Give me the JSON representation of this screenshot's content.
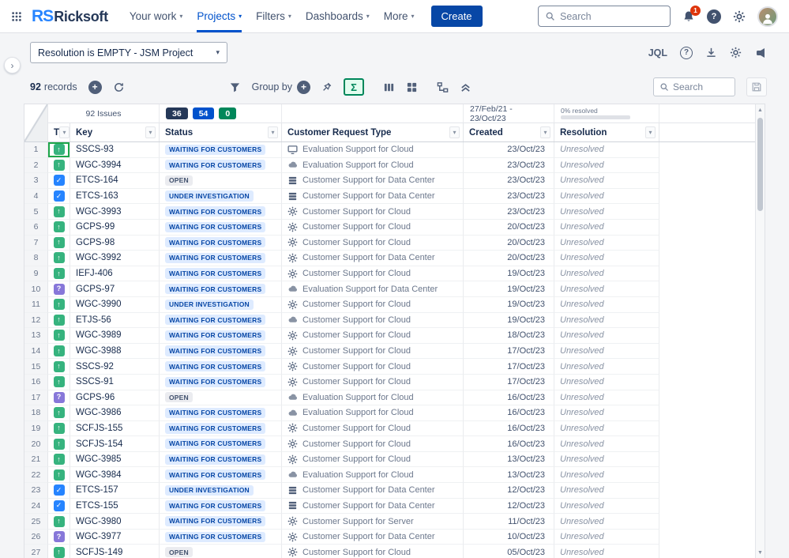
{
  "colors": {
    "brand_blue": "#0052cc",
    "create_button": "#0747a6",
    "sigma_green": "#00875a",
    "notification_red": "#de350b",
    "status_blue_bg": "#deebff",
    "status_blue_text": "#0747a6",
    "status_gray_bg": "#ebecf0",
    "status_gray_text": "#42526e",
    "type_improvement": "#36b37e",
    "type_task": "#2684ff",
    "type_question": "#8777d9",
    "selection_green": "#1da64a"
  },
  "topnav": {
    "logo_mark": "RS",
    "logo_text": "Ricksoft",
    "menu": [
      {
        "label": "Your work",
        "active": false
      },
      {
        "label": "Projects",
        "active": true
      },
      {
        "label": "Filters",
        "active": false
      },
      {
        "label": "Dashboards",
        "active": false
      },
      {
        "label": "More",
        "active": false
      }
    ],
    "create_label": "Create",
    "search_placeholder": "Search",
    "notification_count": "1",
    "icons": [
      "app-switcher-icon",
      "search-icon",
      "bell-icon",
      "help-icon",
      "gear-icon",
      "avatar"
    ]
  },
  "filter_bar": {
    "filter_value": "Resolution is EMPTY - JSM Project",
    "jql_label": "JQL",
    "icons": [
      "help-icon",
      "download-icon",
      "gear-icon",
      "megaphone-icon"
    ]
  },
  "toolbar": {
    "records_count": "92",
    "records_label": "records",
    "group_by_label": "Group by",
    "sum_label": "Σ",
    "search_placeholder": "Search",
    "icons": [
      "add-icon",
      "refresh-icon",
      "filter-icon",
      "add-icon",
      "pin-icon",
      "sigma-icon",
      "bars-icon",
      "grid-icon",
      "tree-icon",
      "collapse-rows-icon",
      "search-icon",
      "save-icon"
    ]
  },
  "table": {
    "issues_summary": "92 Issues",
    "badges": [
      {
        "value": "36",
        "color": "#253858"
      },
      {
        "value": "54",
        "color": "#0052cc"
      },
      {
        "value": "0",
        "color": "#00875a"
      }
    ],
    "date_range": "27/Feb/21 - 23/Oct/23",
    "progress_label": "0% resolved",
    "progress_percent": 0,
    "columns": [
      "T",
      "Key",
      "Status",
      "Customer Request Type",
      "Created",
      "Resolution"
    ],
    "status_styles": {
      "WAITING FOR CUSTOMERS": "blue",
      "UNDER INVESTIGATION": "blue",
      "OPEN": "gray"
    },
    "selected_cell": {
      "row": 1,
      "column": "T"
    },
    "rows": [
      {
        "num": 1,
        "type": "improvement",
        "key": "SSCS-93",
        "status": "WAITING FOR CUSTOMERS",
        "request_icon": "monitor",
        "request": "Evaluation Support for Cloud",
        "created": "23/Oct/23",
        "resolution": "Unresolved"
      },
      {
        "num": 2,
        "type": "improvement",
        "key": "WGC-3994",
        "status": "WAITING FOR CUSTOMERS",
        "request_icon": "cloud",
        "request": "Evaluation Support for Cloud",
        "created": "23/Oct/23",
        "resolution": "Unresolved"
      },
      {
        "num": 3,
        "type": "task",
        "key": "ETCS-164",
        "status": "OPEN",
        "request_icon": "server",
        "request": "Customer Support for Data Center",
        "created": "23/Oct/23",
        "resolution": "Unresolved"
      },
      {
        "num": 4,
        "type": "task",
        "key": "ETCS-163",
        "status": "UNDER INVESTIGATION",
        "request_icon": "server",
        "request": "Customer Support for Data Center",
        "created": "23/Oct/23",
        "resolution": "Unresolved"
      },
      {
        "num": 5,
        "type": "improvement",
        "key": "WGC-3993",
        "status": "WAITING FOR CUSTOMERS",
        "request_icon": "gear",
        "request": "Customer Support for Cloud",
        "created": "23/Oct/23",
        "resolution": "Unresolved"
      },
      {
        "num": 6,
        "type": "improvement",
        "key": "GCPS-99",
        "status": "WAITING FOR CUSTOMERS",
        "request_icon": "gear",
        "request": "Customer Support for Cloud",
        "created": "20/Oct/23",
        "resolution": "Unresolved"
      },
      {
        "num": 7,
        "type": "improvement",
        "key": "GCPS-98",
        "status": "WAITING FOR CUSTOMERS",
        "request_icon": "gear",
        "request": "Customer Support for Cloud",
        "created": "20/Oct/23",
        "resolution": "Unresolved"
      },
      {
        "num": 8,
        "type": "improvement",
        "key": "WGC-3992",
        "status": "WAITING FOR CUSTOMERS",
        "request_icon": "gear",
        "request": "Customer Support for Data Center",
        "created": "20/Oct/23",
        "resolution": "Unresolved"
      },
      {
        "num": 9,
        "type": "improvement",
        "key": "IEFJ-406",
        "status": "WAITING FOR CUSTOMERS",
        "request_icon": "gear",
        "request": "Customer Support for Cloud",
        "created": "19/Oct/23",
        "resolution": "Unresolved"
      },
      {
        "num": 10,
        "type": "question",
        "key": "GCPS-97",
        "status": "WAITING FOR CUSTOMERS",
        "request_icon": "cloud",
        "request": "Evaluation Support for Data Center",
        "created": "19/Oct/23",
        "resolution": "Unresolved"
      },
      {
        "num": 11,
        "type": "improvement",
        "key": "WGC-3990",
        "status": "UNDER INVESTIGATION",
        "request_icon": "gear",
        "request": "Customer Support for Cloud",
        "created": "19/Oct/23",
        "resolution": "Unresolved"
      },
      {
        "num": 12,
        "type": "improvement",
        "key": "ETJS-56",
        "status": "WAITING FOR CUSTOMERS",
        "request_icon": "cloud",
        "request": "Customer Support for Cloud",
        "created": "19/Oct/23",
        "resolution": "Unresolved"
      },
      {
        "num": 13,
        "type": "improvement",
        "key": "WGC-3989",
        "status": "WAITING FOR CUSTOMERS",
        "request_icon": "gear",
        "request": "Customer Support for Cloud",
        "created": "18/Oct/23",
        "resolution": "Unresolved"
      },
      {
        "num": 14,
        "type": "improvement",
        "key": "WGC-3988",
        "status": "WAITING FOR CUSTOMERS",
        "request_icon": "gear",
        "request": "Customer Support for Cloud",
        "created": "17/Oct/23",
        "resolution": "Unresolved"
      },
      {
        "num": 15,
        "type": "improvement",
        "key": "SSCS-92",
        "status": "WAITING FOR CUSTOMERS",
        "request_icon": "gear",
        "request": "Customer Support for Cloud",
        "created": "17/Oct/23",
        "resolution": "Unresolved"
      },
      {
        "num": 16,
        "type": "improvement",
        "key": "SSCS-91",
        "status": "WAITING FOR CUSTOMERS",
        "request_icon": "gear",
        "request": "Customer Support for Cloud",
        "created": "17/Oct/23",
        "resolution": "Unresolved"
      },
      {
        "num": 17,
        "type": "question",
        "key": "GCPS-96",
        "status": "OPEN",
        "request_icon": "cloud",
        "request": "Evaluation Support for Cloud",
        "created": "16/Oct/23",
        "resolution": "Unresolved"
      },
      {
        "num": 18,
        "type": "improvement",
        "key": "WGC-3986",
        "status": "WAITING FOR CUSTOMERS",
        "request_icon": "cloud",
        "request": "Evaluation Support for Cloud",
        "created": "16/Oct/23",
        "resolution": "Unresolved"
      },
      {
        "num": 19,
        "type": "improvement",
        "key": "SCFJS-155",
        "status": "WAITING FOR CUSTOMERS",
        "request_icon": "gear",
        "request": "Customer Support for Cloud",
        "created": "16/Oct/23",
        "resolution": "Unresolved"
      },
      {
        "num": 20,
        "type": "improvement",
        "key": "SCFJS-154",
        "status": "WAITING FOR CUSTOMERS",
        "request_icon": "gear",
        "request": "Customer Support for Cloud",
        "created": "16/Oct/23",
        "resolution": "Unresolved"
      },
      {
        "num": 21,
        "type": "improvement",
        "key": "WGC-3985",
        "status": "WAITING FOR CUSTOMERS",
        "request_icon": "gear",
        "request": "Customer Support for Cloud",
        "created": "13/Oct/23",
        "resolution": "Unresolved"
      },
      {
        "num": 22,
        "type": "improvement",
        "key": "WGC-3984",
        "status": "WAITING FOR CUSTOMERS",
        "request_icon": "cloud",
        "request": "Evaluation Support for Cloud",
        "created": "13/Oct/23",
        "resolution": "Unresolved"
      },
      {
        "num": 23,
        "type": "task",
        "key": "ETCS-157",
        "status": "UNDER INVESTIGATION",
        "request_icon": "server",
        "request": "Customer Support for Data Center",
        "created": "12/Oct/23",
        "resolution": "Unresolved"
      },
      {
        "num": 24,
        "type": "task",
        "key": "ETCS-155",
        "status": "WAITING FOR CUSTOMERS",
        "request_icon": "server",
        "request": "Customer Support for Data Center",
        "created": "12/Oct/23",
        "resolution": "Unresolved"
      },
      {
        "num": 25,
        "type": "improvement",
        "key": "WGC-3980",
        "status": "WAITING FOR CUSTOMERS",
        "request_icon": "gear",
        "request": "Customer Support for Server",
        "created": "11/Oct/23",
        "resolution": "Unresolved"
      },
      {
        "num": 26,
        "type": "question",
        "key": "WGC-3977",
        "status": "WAITING FOR CUSTOMERS",
        "request_icon": "gear",
        "request": "Customer Support for Data Center",
        "created": "10/Oct/23",
        "resolution": "Unresolved"
      },
      {
        "num": 27,
        "type": "improvement",
        "key": "SCFJS-149",
        "status": "OPEN",
        "request_icon": "gear",
        "request": "Customer Support for Cloud",
        "created": "05/Oct/23",
        "resolution": "Unresolved"
      }
    ]
  }
}
